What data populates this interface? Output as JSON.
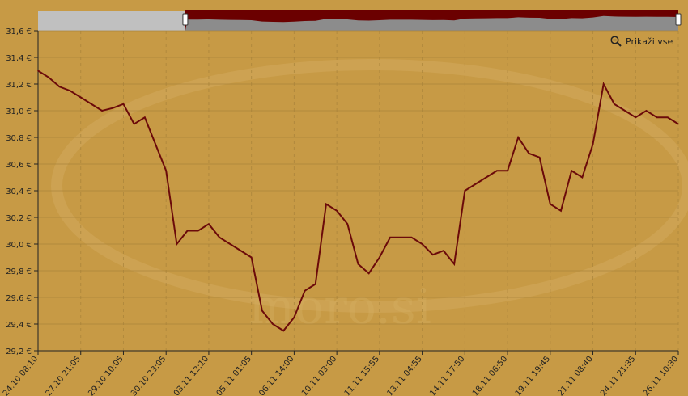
{
  "controls": {
    "show_all_label": "Prikaži vse",
    "zoom_icon": "zoom-out-icon"
  },
  "watermark": "moro.si",
  "colors": {
    "background": "#c79a45",
    "line": "#6b0a0a",
    "navigator_selected": "#6b0000",
    "navigator_fill": "#8c8c8c",
    "navigator_unselected": "#c0c0c0"
  },
  "navigator": {
    "selection_start_fraction": 0.23,
    "selection_end_fraction": 1.0
  },
  "chart_data": {
    "type": "line",
    "title": "",
    "xlabel": "",
    "ylabel": "",
    "ylim": [
      29.2,
      31.6
    ],
    "yticks": [
      "29,2 €",
      "29,4 €",
      "29,6 €",
      "29,8 €",
      "30,0 €",
      "30,2 €",
      "30,4 €",
      "30,6 €",
      "30,8 €",
      "31,0 €",
      "31,2 €",
      "31,4 €",
      "31,6 €"
    ],
    "ytick_values": [
      29.2,
      29.4,
      29.6,
      29.8,
      30.0,
      30.2,
      30.4,
      30.6,
      30.8,
      31.0,
      31.2,
      31.4,
      31.6
    ],
    "xtick_labels": [
      "24.10 08:10",
      "27.10 21:05",
      "29.10 10:05",
      "30.10 23:05",
      "03.11 12:10",
      "05.11 01:05",
      "06.11 14:00",
      "10.11 03:00",
      "11.11 15:55",
      "13.11 04:55",
      "14.11 17:50",
      "18.11 06:50",
      "19.11 19:45",
      "21.11 08:40",
      "24.11 21:35",
      "26.11 10:30"
    ],
    "grid": true,
    "series": [
      {
        "values": [
          31.3,
          31.25,
          31.18,
          31.15,
          31.1,
          31.05,
          31.0,
          31.02,
          31.05,
          30.9,
          30.95,
          30.75,
          30.55,
          30.0,
          30.1,
          30.1,
          30.15,
          30.05,
          30.0,
          29.95,
          29.9,
          29.5,
          29.4,
          29.35,
          29.45,
          29.65,
          29.7,
          30.3,
          30.25,
          30.15,
          29.85,
          29.78,
          29.9,
          30.05,
          30.05,
          30.05,
          30.0,
          29.92,
          29.95,
          29.85,
          30.4,
          30.45,
          30.5,
          30.55,
          30.55,
          30.8,
          30.68,
          30.65,
          30.3,
          30.25,
          30.55,
          30.5,
          30.75,
          31.2,
          31.05,
          31.0,
          30.95,
          31.0,
          30.95,
          30.95,
          30.9
        ]
      }
    ]
  }
}
